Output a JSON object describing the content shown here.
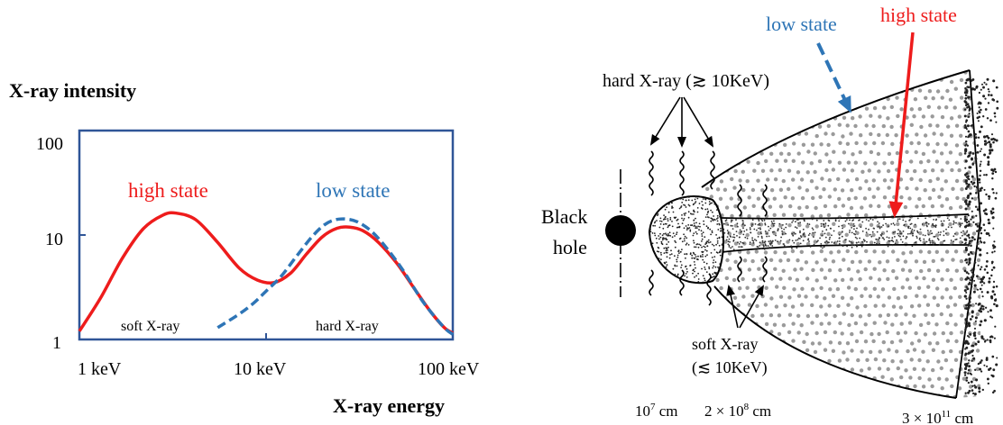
{
  "colors": {
    "high_state": "#ee1c1c",
    "low_state": "#2e75b6",
    "frame": "#2f5597",
    "ink": "#000000"
  },
  "chart_data": {
    "type": "line",
    "title": "",
    "ylabel": "X-ray intensity",
    "xlabel": "X-ray energy",
    "x_scale": "log",
    "y_scale": "log",
    "xlim": [
      1,
      100
    ],
    "ylim": [
      1,
      100
    ],
    "x_ticks": [
      "1 keV",
      "10 keV",
      "100 keV"
    ],
    "y_ticks": [
      "1",
      "10",
      "100"
    ],
    "series": [
      {
        "name": "high state",
        "color": "#ee1c1c",
        "style": "solid",
        "x": [
          1.0,
          1.3,
          1.7,
          2.2,
          2.8,
          3.3,
          4.2,
          5.5,
          7.2,
          9.0,
          11.0,
          13.5,
          16.5,
          20.0,
          24.0,
          28.0,
          33.0,
          40.0,
          50.0,
          62.0,
          76.0,
          90.0,
          100.0
        ],
        "y": [
          1.2,
          2.5,
          6.0,
          11.5,
          15.5,
          16.2,
          14.0,
          8.5,
          4.8,
          3.7,
          3.5,
          4.3,
          6.6,
          9.6,
          11.6,
          11.9,
          11.0,
          8.5,
          5.4,
          3.1,
          1.85,
          1.3,
          1.15
        ]
      },
      {
        "name": "low state",
        "color": "#2e75b6",
        "style": "dashed",
        "x": [
          5.5,
          7.0,
          8.5,
          10.0,
          12.0,
          14.5,
          17.5,
          20.5,
          23.5,
          27.0,
          31.0,
          37.0,
          45.0,
          55.0,
          67.0,
          80.0,
          92.0,
          100.0
        ],
        "y": [
          1.3,
          1.7,
          2.2,
          2.9,
          4.0,
          6.2,
          9.5,
          12.5,
          14.0,
          14.2,
          13.3,
          10.7,
          7.2,
          4.4,
          2.5,
          1.65,
          1.25,
          1.12
        ]
      }
    ],
    "annotations": [
      "soft X-ray",
      "hard X-ray"
    ]
  },
  "disk": {
    "black_hole": [
      "Black",
      "hole"
    ],
    "low_state": "low state",
    "high_state": "high state",
    "hard_xray": "hard X-ray (≳ 10KeV)",
    "soft_xray_line1": "soft X-ray",
    "soft_xray_line2": "(≲ 10KeV)",
    "scales": {
      "r1_base": "10",
      "r1_exp": "7",
      "r1_unit": " cm",
      "r2_base": "2 × 10",
      "r2_exp": "8",
      "r2_unit": " cm",
      "r3_base": "3 × 10",
      "r3_exp": "11",
      "r3_unit": " cm"
    }
  }
}
